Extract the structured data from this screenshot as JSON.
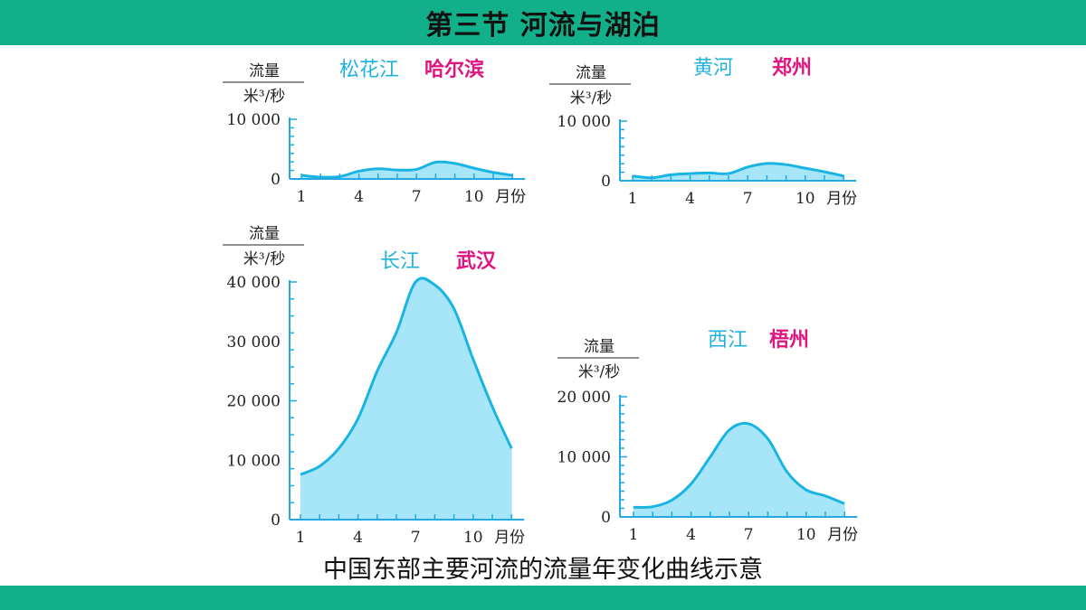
{
  "header": {
    "title": "第三节 河流与湖泊"
  },
  "caption": "中国东部主要河流的流量年变化曲线示意",
  "colors": {
    "bar": "#12b08a",
    "curve": "#1ab4e3",
    "fill": "#a6e6f8",
    "river": "#20b2de",
    "city": "#e0157f",
    "axis": "#23a8e0"
  },
  "chart_data": [
    {
      "type": "area",
      "river": "松花江",
      "city": "哈尔滨",
      "unit_top": "流量",
      "unit_bottom": "米³/秒",
      "x": [
        1,
        2,
        3,
        4,
        5,
        6,
        7,
        8,
        9,
        10,
        11,
        12
      ],
      "values": [
        600,
        300,
        400,
        1300,
        1700,
        1500,
        1600,
        2800,
        2600,
        1800,
        1100,
        600
      ],
      "ylim": [
        0,
        10000
      ],
      "yticks": [
        0,
        10000
      ],
      "ytick_labels": [
        "0",
        "10 000"
      ],
      "xtick_labels": [
        "1",
        "4",
        "7",
        "10"
      ],
      "xtick_values": [
        1,
        4,
        7,
        10
      ],
      "xunit": "月份"
    },
    {
      "type": "area",
      "river": "黄河",
      "city": "郑州",
      "unit_top": "流量",
      "unit_bottom": "米³/秒",
      "x": [
        1,
        2,
        3,
        4,
        5,
        6,
        7,
        8,
        9,
        10,
        11,
        12
      ],
      "values": [
        800,
        500,
        1000,
        1200,
        1300,
        1200,
        2300,
        2900,
        2700,
        2100,
        1500,
        800
      ],
      "ylim": [
        0,
        10000
      ],
      "yticks": [
        0,
        10000
      ],
      "ytick_labels": [
        "0",
        "10 000"
      ],
      "xtick_labels": [
        "1",
        "4",
        "7",
        "10"
      ],
      "xtick_values": [
        1,
        4,
        7,
        10
      ],
      "xunit": "月份"
    },
    {
      "type": "area",
      "river": "长江",
      "city": "武汉",
      "unit_top": "流量",
      "unit_bottom": "米³/秒",
      "x": [
        1,
        2,
        3,
        4,
        5,
        6,
        7,
        8,
        9,
        10,
        11,
        12
      ],
      "values": [
        7600,
        9000,
        12000,
        17000,
        25000,
        31500,
        40000,
        39500,
        35500,
        27000,
        19000,
        12000
      ],
      "ylim": [
        0,
        40000
      ],
      "yticks": [
        0,
        10000,
        20000,
        30000,
        40000
      ],
      "ytick_labels": [
        "0",
        "10 000",
        "20 000",
        "30 000",
        "40 000"
      ],
      "xtick_labels": [
        "1",
        "4",
        "7",
        "10"
      ],
      "xtick_values": [
        1,
        4,
        7,
        10
      ],
      "xunit": "月份"
    },
    {
      "type": "area",
      "river": "西江",
      "city": "梧州",
      "unit_top": "流量",
      "unit_bottom": "米³/秒",
      "x": [
        1,
        2,
        3,
        4,
        5,
        6,
        7,
        8,
        9,
        10,
        11,
        12
      ],
      "values": [
        1600,
        1700,
        2800,
        5500,
        10000,
        14500,
        15500,
        13000,
        7500,
        4500,
        3500,
        2200
      ],
      "ylim": [
        0,
        20000
      ],
      "yticks": [
        0,
        10000,
        20000
      ],
      "ytick_labels": [
        "0",
        "10 000",
        "20 000"
      ],
      "xtick_labels": [
        "1",
        "4",
        "7",
        "10"
      ],
      "xtick_values": [
        1,
        4,
        7,
        10
      ],
      "xunit": "月份"
    }
  ]
}
